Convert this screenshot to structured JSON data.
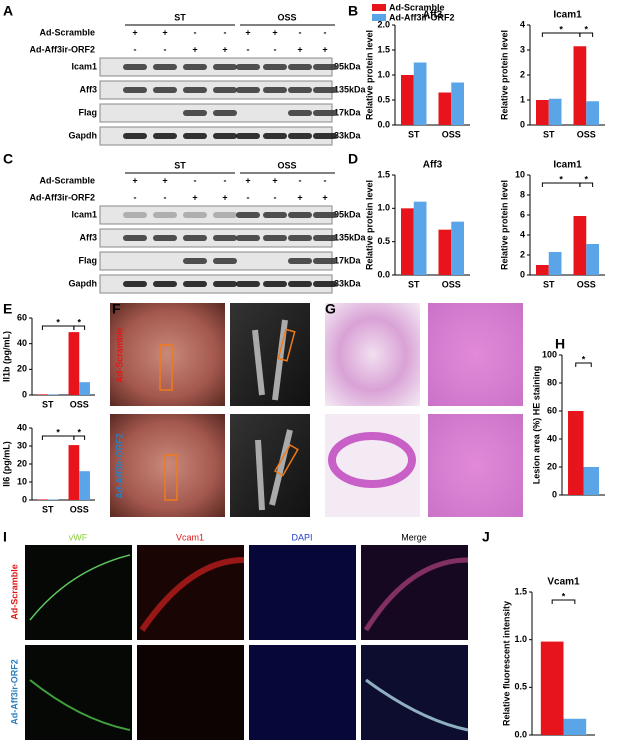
{
  "letters": [
    "A",
    "B",
    "C",
    "D",
    "E",
    "F",
    "G",
    "H",
    "I",
    "J"
  ],
  "blots": [
    {
      "groups": [
        "ST",
        "OSS"
      ],
      "rows": [
        {
          "label": "Ad-Scramble",
          "signs": [
            "+",
            "+",
            "-",
            "-",
            "+",
            "+",
            "-",
            "-"
          ]
        },
        {
          "label": "Ad-Aff3ir-ORF2",
          "signs": [
            "-",
            "-",
            "+",
            "+",
            "-",
            "-",
            "+",
            "+"
          ]
        }
      ],
      "bands": [
        {
          "name": "Icam1",
          "kda": "95kDa"
        },
        {
          "name": "Aff3",
          "kda": "135kDa"
        },
        {
          "name": "Flag",
          "kda": "17kDa"
        },
        {
          "name": "Gapdh",
          "kda": "33kDa"
        }
      ]
    },
    {
      "groups": [
        "ST",
        "OSS"
      ],
      "rows": [
        {
          "label": "Ad-Scramble",
          "signs": [
            "+",
            "+",
            "-",
            "-",
            "+",
            "+",
            "-",
            "-"
          ]
        },
        {
          "label": "Ad-Aff3ir-ORF2",
          "signs": [
            "-",
            "-",
            "+",
            "+",
            "-",
            "-",
            "+",
            "+"
          ]
        }
      ],
      "bands": [
        {
          "name": "Icam1",
          "kda": "95kDa"
        },
        {
          "name": "Aff3",
          "kda": "135kDa"
        },
        {
          "name": "Flag",
          "kda": "17kDa"
        },
        {
          "name": "Gapdh",
          "kda": "33kDa"
        }
      ]
    }
  ],
  "images": {
    "f_rows": [
      "Ad-Scramble",
      "Ad-Aff3ir-ORF2"
    ],
    "i_columns": [
      "vWF",
      "Vcam1",
      "DAPI",
      "Merge"
    ],
    "i_rows": [
      "Ad-Scramble",
      "Ad-Aff3ir-ORF2"
    ]
  },
  "chart_data": [
    {
      "type": "bar",
      "title": "Aff3",
      "ylabel": "Relative protein level",
      "categories": [
        "ST",
        "OSS"
      ],
      "legend": true,
      "series": [
        {
          "name": "Ad-Scramble",
          "color": "#e8141c",
          "values": [
            1.0,
            0.65
          ]
        },
        {
          "name": "Ad-Aff3ir-ORF2",
          "color": "#5aa5e8",
          "values": [
            1.25,
            0.85
          ]
        }
      ],
      "ylim": [
        0,
        2
      ],
      "yticks": [
        {
          "value": 0,
          "label": "0.0"
        },
        0.5,
        {
          "value": 1,
          "label": "1.0"
        },
        1.5,
        {
          "value": 2,
          "label": "2.0"
        }
      ],
      "annotations": []
    },
    {
      "type": "bar",
      "title": "Icam1",
      "ylabel": "Relative protein level",
      "categories": [
        "ST",
        "OSS"
      ],
      "series": [
        {
          "color": "#e8141c",
          "values": [
            1.0,
            3.15
          ]
        },
        {
          "color": "#5aa5e8",
          "values": [
            1.05,
            0.95
          ]
        }
      ],
      "ylim": [
        0,
        4
      ],
      "yticks": [
        0,
        1,
        2,
        3,
        4
      ],
      "annotations": [
        "*",
        "*"
      ]
    },
    {
      "type": "bar",
      "title": "Aff3",
      "ylabel": "Relative protein level",
      "categories": [
        "ST",
        "OSS"
      ],
      "series": [
        {
          "color": "#e8141c",
          "values": [
            1.0,
            0.68
          ]
        },
        {
          "color": "#5aa5e8",
          "values": [
            1.1,
            0.8
          ]
        }
      ],
      "ylim": [
        0,
        1.5
      ],
      "yticks": [
        {
          "value": 0,
          "label": "0.0"
        },
        0.5,
        {
          "value": 1,
          "label": "1.0"
        },
        1.5
      ],
      "annotations": []
    },
    {
      "type": "bar",
      "title": "Icam1",
      "ylabel": "Relative protein level",
      "categories": [
        "ST",
        "OSS"
      ],
      "series": [
        {
          "color": "#e8141c",
          "values": [
            1.0,
            5.9
          ]
        },
        {
          "color": "#5aa5e8",
          "values": [
            2.3,
            3.1
          ]
        }
      ],
      "ylim": [
        0,
        10
      ],
      "yticks": [
        0,
        2,
        4,
        6,
        8,
        10
      ],
      "annotations": [
        "*",
        "*"
      ]
    },
    {
      "type": "bar",
      "ylabel": "Il1b (pg/mL)",
      "categories": [
        "ST",
        "OSS"
      ],
      "series": [
        {
          "color": "#e8141c",
          "values": [
            0.5,
            49
          ]
        },
        {
          "color": "#5aa5e8",
          "values": [
            0.5,
            10
          ]
        }
      ],
      "ylim": [
        0,
        60
      ],
      "yticks": [
        0,
        20,
        40,
        60
      ],
      "annotations": [
        "*",
        "*"
      ]
    },
    {
      "type": "bar",
      "ylabel": "Il6 (pg/mL)",
      "categories": [
        "ST",
        "OSS"
      ],
      "series": [
        {
          "color": "#e8141c",
          "values": [
            0.3,
            30.5
          ]
        },
        {
          "color": "#5aa5e8",
          "values": [
            0.3,
            16
          ]
        }
      ],
      "ylim": [
        0,
        40
      ],
      "yticks": [
        0,
        10,
        20,
        30,
        40
      ],
      "annotations": [
        "*",
        "*"
      ]
    },
    {
      "type": "bar",
      "ylabel": "Lesion area (%) HE staining",
      "categories": [
        null
      ],
      "series": [
        {
          "color": "#e8141c",
          "values": [
            60
          ]
        },
        {
          "color": "#5aa5e8",
          "values": [
            20
          ]
        }
      ],
      "ylim": [
        0,
        100
      ],
      "yticks": [
        0,
        20,
        40,
        60,
        80,
        100
      ],
      "annotations": [
        "*"
      ]
    },
    {
      "type": "bar",
      "title": "Vcam1",
      "ylabel": "Relative fluorescent intensity",
      "categories": [
        null
      ],
      "series": [
        {
          "color": "#e8141c",
          "values": [
            0.98
          ]
        },
        {
          "color": "#5aa5e8",
          "values": [
            0.17
          ]
        }
      ],
      "ylim": [
        0,
        1.5
      ],
      "yticks": [
        {
          "value": 0,
          "label": "0.0"
        },
        0.5,
        {
          "value": 1,
          "label": "1.0"
        },
        1.5
      ],
      "annotations": [
        "*"
      ]
    }
  ]
}
